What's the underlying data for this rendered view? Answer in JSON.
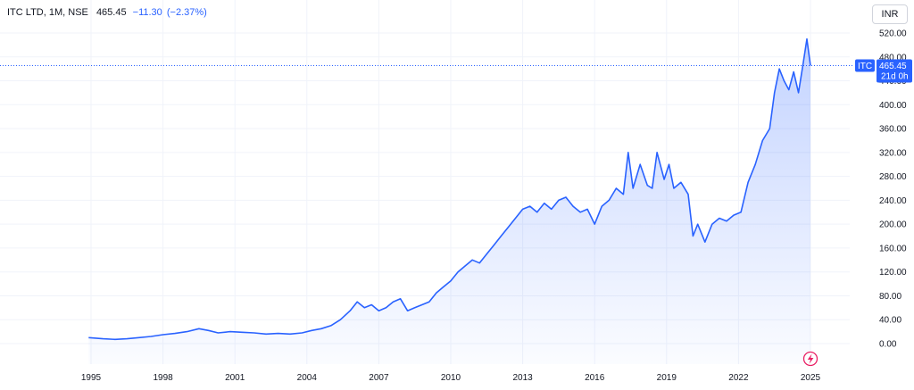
{
  "header": {
    "symbol": "ITC LTD, 1M, NSE",
    "price": "465.45",
    "change": "−11.30",
    "change_pct": "(−2.37%)"
  },
  "currency_button": "INR",
  "price_badge": {
    "ticker": "ITC",
    "price": "465.45",
    "countdown": "21d 0h"
  },
  "colors": {
    "line": "#2962ff",
    "badge": "#2962ff",
    "grid": "#f0f3fa"
  },
  "chart_data": {
    "type": "area",
    "title": "",
    "xlabel": "",
    "ylabel": "",
    "x_ticks": [
      "1995",
      "1998",
      "2001",
      "2004",
      "2007",
      "2010",
      "2013",
      "2016",
      "2019",
      "2022",
      "2025"
    ],
    "y_ticks": [
      "0.00",
      "40.00",
      "80.00",
      "120.00",
      "160.00",
      "200.00",
      "240.00",
      "280.00",
      "320.00",
      "360.00",
      "400.00",
      "440.00",
      "480.00",
      "520.00"
    ],
    "xlim": [
      1995,
      2025
    ],
    "ylim": [
      0,
      520
    ],
    "grid": true,
    "last_value": 465.45,
    "series": [
      {
        "x": [
          1994.9,
          1995.5,
          1996.0,
          1996.5,
          1997.0,
          1997.5,
          1998.0,
          1998.5,
          1999.0,
          1999.5,
          1999.9,
          2000.3,
          2000.8,
          2001.3,
          2001.8,
          2002.3,
          2002.8,
          2003.3,
          2003.8,
          2004.2,
          2004.6,
          2005.0,
          2005.4,
          2005.8,
          2006.1,
          2006.4,
          2006.7,
          2007.0,
          2007.3,
          2007.6,
          2007.9,
          2008.2,
          2008.5,
          2008.8,
          2009.1,
          2009.4,
          2009.7,
          2010.0,
          2010.3,
          2010.6,
          2010.9,
          2011.2,
          2011.5,
          2011.8,
          2012.1,
          2012.4,
          2012.7,
          2013.0,
          2013.3,
          2013.6,
          2013.9,
          2014.2,
          2014.5,
          2014.8,
          2015.1,
          2015.4,
          2015.7,
          2016.0,
          2016.3,
          2016.6,
          2016.9,
          2017.2,
          2017.4,
          2017.6,
          2017.9,
          2018.2,
          2018.4,
          2018.6,
          2018.9,
          2019.1,
          2019.3,
          2019.6,
          2019.9,
          2020.1,
          2020.3,
          2020.6,
          2020.9,
          2021.2,
          2021.5,
          2021.8,
          2022.1,
          2022.4,
          2022.7,
          2023.0,
          2023.3,
          2023.5,
          2023.7,
          2023.9,
          2024.1,
          2024.3,
          2024.5,
          2024.7,
          2024.85,
          2025.0
        ],
        "y": [
          10,
          8,
          7,
          8,
          10,
          12,
          15,
          17,
          20,
          25,
          22,
          18,
          20,
          19,
          18,
          16,
          17,
          16,
          18,
          22,
          25,
          30,
          40,
          55,
          70,
          60,
          65,
          55,
          60,
          70,
          75,
          55,
          60,
          65,
          70,
          85,
          95,
          105,
          120,
          130,
          140,
          135,
          150,
          165,
          180,
          195,
          210,
          225,
          230,
          220,
          235,
          225,
          240,
          245,
          230,
          220,
          225,
          200,
          230,
          240,
          260,
          250,
          320,
          260,
          300,
          265,
          260,
          320,
          275,
          300,
          260,
          270,
          250,
          180,
          200,
          170,
          200,
          210,
          205,
          215,
          220,
          270,
          300,
          340,
          360,
          420,
          460,
          440,
          425,
          455,
          420,
          470,
          510,
          465.45
        ]
      }
    ]
  }
}
